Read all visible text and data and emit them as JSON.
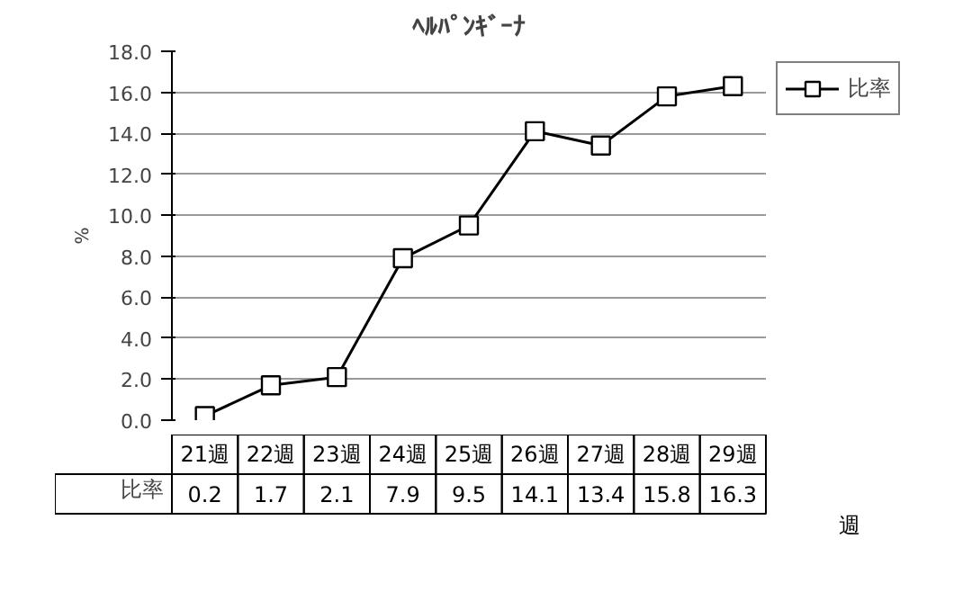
{
  "chart_data": {
    "type": "line",
    "title": "ﾍﾙﾊﾟﾝｷﾞｰﾅ",
    "xlabel": "週",
    "ylabel": "%",
    "categories": [
      "21週",
      "22週",
      "23週",
      "24週",
      "25週",
      "26週",
      "27週",
      "28週",
      "29週"
    ],
    "series": [
      {
        "name": "比率",
        "color": "#000000",
        "values": [
          0.2,
          1.7,
          2.1,
          7.9,
          9.5,
          14.1,
          13.4,
          15.8,
          16.3
        ]
      }
    ],
    "ylim": [
      0,
      18
    ],
    "yticks": [
      {
        "value": 0,
        "label": "0.0"
      },
      {
        "value": 2,
        "label": "2.0"
      },
      {
        "value": 4,
        "label": "4.0"
      },
      {
        "value": 6,
        "label": "6.0"
      },
      {
        "value": 8,
        "label": "8.0"
      },
      {
        "value": 10,
        "label": "10.0"
      },
      {
        "value": 12,
        "label": "12.0"
      },
      {
        "value": 14,
        "label": "14.0"
      },
      {
        "value": 16,
        "label": "16.0"
      },
      {
        "value": 18,
        "label": "18.0"
      }
    ],
    "grid": "y",
    "legend": "top right",
    "marker": "square",
    "line_style": "solid",
    "data_labels": true
  }
}
